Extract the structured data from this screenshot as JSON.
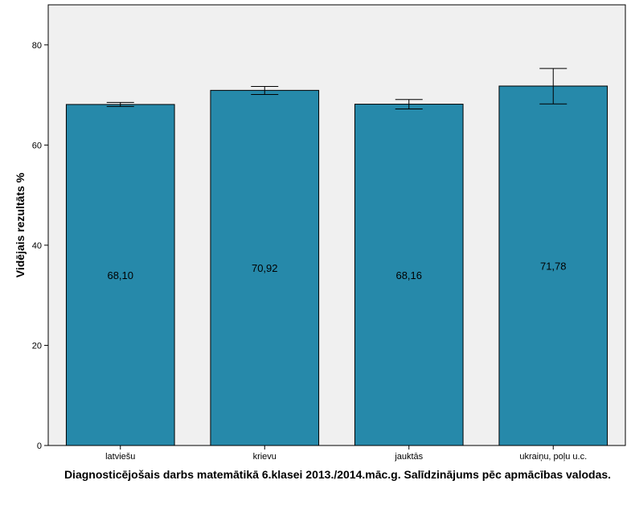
{
  "chart_data": {
    "type": "bar",
    "title": "Diagnosticējošais darbs matemātikā 6.klasei 2013./2014.māc.g. Salīdzinājums pēc apmācības valodas.",
    "xlabel": "",
    "ylabel": "Vidējais rezultāts %",
    "categories": [
      "latviešu",
      "krievu",
      "jauktās",
      "ukraiņu, poļu u.c."
    ],
    "values": [
      68.1,
      70.92,
      68.16,
      71.78
    ],
    "value_labels": [
      "68,10",
      "70,92",
      "68,16",
      "71,78"
    ],
    "error_bars": [
      {
        "low": 67.7,
        "high": 68.5
      },
      {
        "low": 70.1,
        "high": 71.7
      },
      {
        "low": 67.2,
        "high": 69.1
      },
      {
        "low": 68.2,
        "high": 75.3
      }
    ],
    "ylim": [
      0,
      88
    ],
    "yticks": [
      0,
      20,
      40,
      60,
      80
    ],
    "grid": false,
    "colors": {
      "bar_fill": "#2689AA",
      "bar_stroke": "#000000",
      "plot_background": "#F0F0F0"
    }
  }
}
